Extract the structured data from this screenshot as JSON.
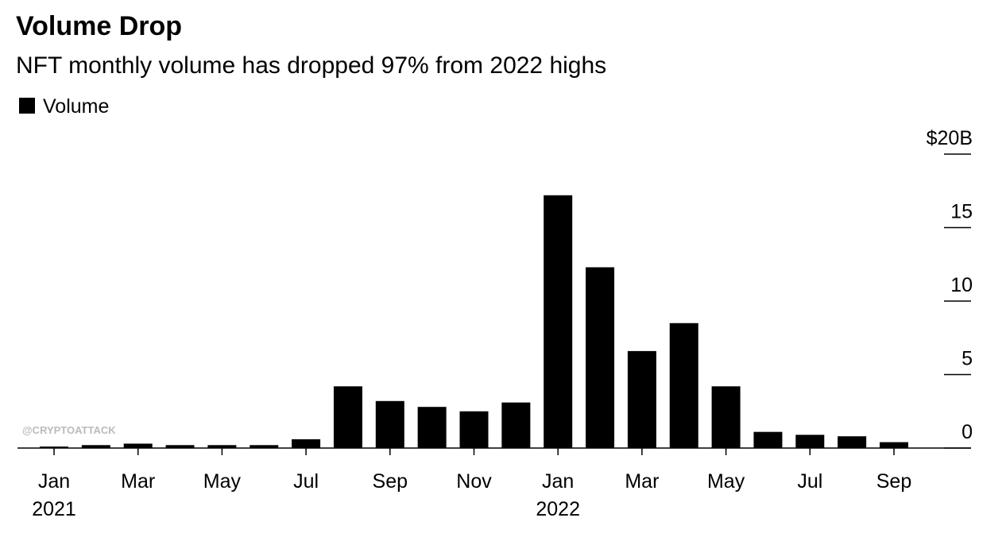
{
  "chart_data": {
    "type": "bar",
    "title": "Volume Drop",
    "subtitle": "NFT monthly volume has dropped 97% from 2022 highs",
    "legend": "Volume",
    "color": "#000000",
    "watermark": "@CRYPTOATTACK",
    "categories": [
      "Jan",
      null,
      "Mar",
      null,
      "May",
      null,
      "Jul",
      null,
      "Sep",
      null,
      "Nov",
      null,
      "Jan",
      null,
      "Mar",
      null,
      "May",
      null,
      "Jul",
      null,
      "Sep"
    ],
    "year_labels": [
      "2021",
      null,
      null,
      null,
      null,
      null,
      null,
      null,
      null,
      null,
      null,
      null,
      "2022",
      null,
      null,
      null,
      null,
      null,
      null,
      null,
      null
    ],
    "values": [
      0.1,
      0.2,
      0.3,
      0.2,
      0.2,
      0.2,
      0.6,
      4.2,
      3.2,
      2.8,
      2.5,
      3.1,
      17.2,
      12.3,
      6.6,
      8.5,
      4.2,
      1.1,
      0.9,
      0.8,
      0.4
    ],
    "ylim": [
      0,
      20
    ],
    "yticks": [
      0,
      5,
      10,
      15,
      {
        "value": 20,
        "label": "$20B"
      }
    ]
  }
}
